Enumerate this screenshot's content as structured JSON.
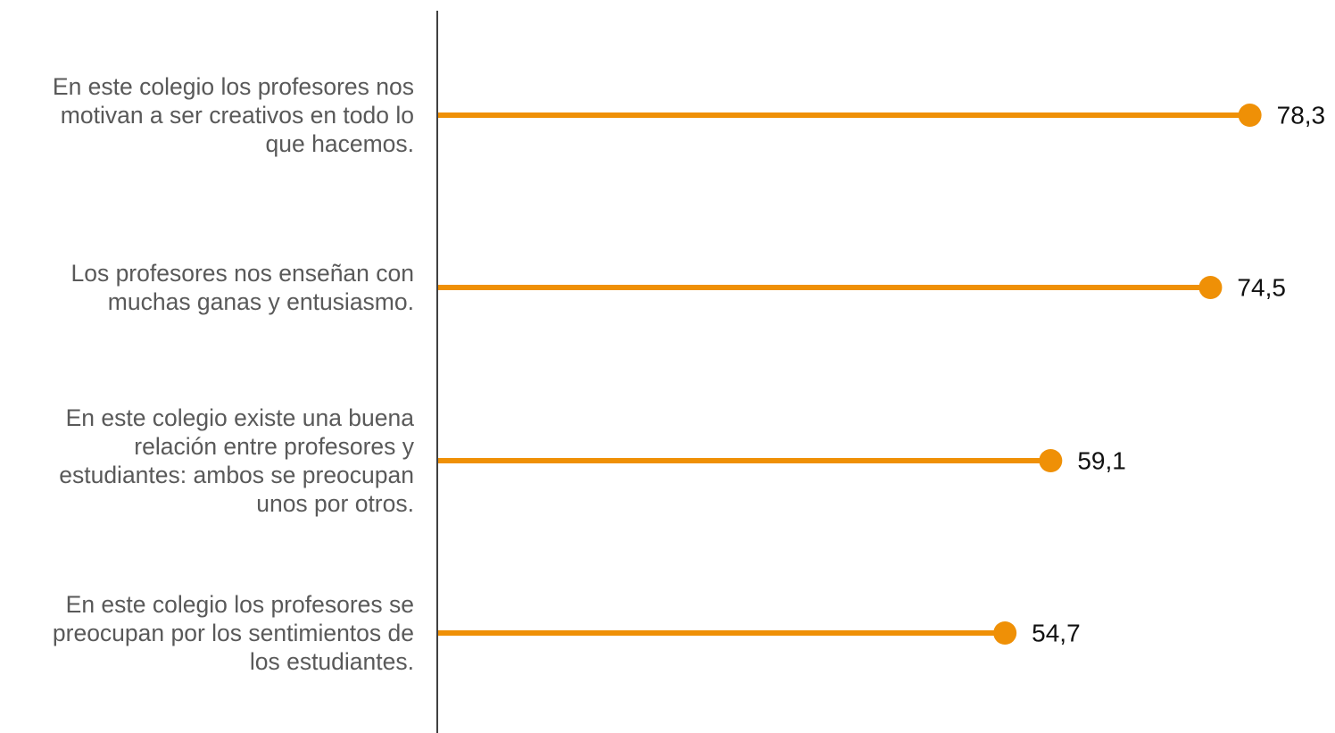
{
  "chart_data": {
    "type": "lollipop",
    "orientation": "horizontal",
    "categories": [
      "En este colegio los profesores nos motivan a ser creativos en todo lo que hacemos.",
      "Los profesores nos enseñan con muchas ganas y entusiasmo.",
      "En este colegio existe una buena relación entre profesores y estudiantes: ambos se preocupan unos por otros.",
      "En este colegio los profesores se preocupan por los sentimientos de los estudiantes."
    ],
    "category_lines": [
      [
        "En este colegio los profesores nos",
        "motivan a ser creativos en todo lo",
        "que hacemos."
      ],
      [
        "Los profesores nos enseñan con",
        "muchas ganas y entusiasmo."
      ],
      [
        "En este colegio existe una buena",
        "relación entre profesores y",
        "estudiantes: ambos se preocupan",
        "unos por otros."
      ],
      [
        "En este colegio los profesores se",
        "preocupan por los sentimientos de",
        "los estudiantes."
      ]
    ],
    "values": [
      78.3,
      74.5,
      59.1,
      54.7
    ],
    "value_labels": [
      "78,3",
      "74,5",
      "59,1",
      "54,7"
    ],
    "xlim": [
      0,
      100
    ],
    "grid": false,
    "legend": "none",
    "colors": {
      "series": "#EF9006",
      "axis": "#404040",
      "category_text": "#595959",
      "value_text": "#111111"
    }
  }
}
